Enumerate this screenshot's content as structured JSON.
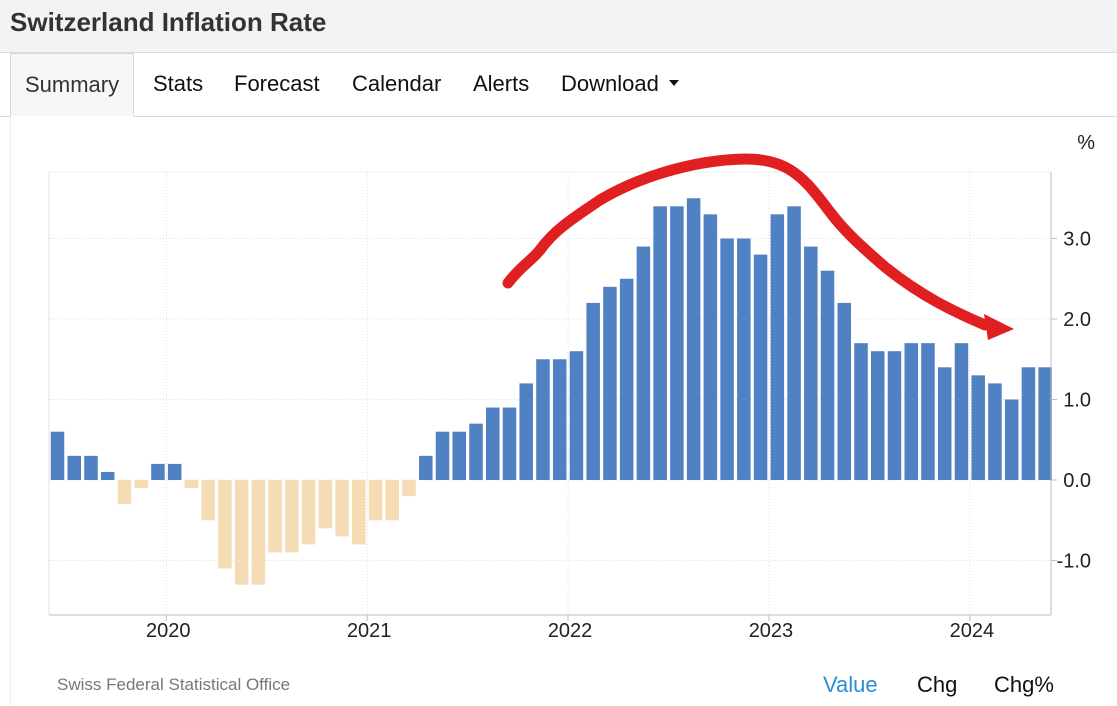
{
  "header": {
    "title": "Switzerland Inflation Rate"
  },
  "tabs": [
    {
      "label": "Summary",
      "active": true
    },
    {
      "label": "Stats"
    },
    {
      "label": "Forecast"
    },
    {
      "label": "Calendar"
    },
    {
      "label": "Alerts"
    },
    {
      "label": "Download"
    }
  ],
  "footer": {
    "source": "Swiss Federal Statistical Office",
    "view_buttons": [
      "Value",
      "Chg",
      "Chg%"
    ],
    "active_view": "Value"
  },
  "chart_data": {
    "type": "bar",
    "unit_label": "%",
    "x_start": "2019-06",
    "frequency": "monthly",
    "x_ticks": [
      "2020",
      "2021",
      "2022",
      "2023",
      "2024"
    ],
    "y_ticks": [
      "3.0",
      "2.0",
      "1.0",
      "0.0",
      "-1.0"
    ],
    "ylim": [
      -1.7,
      3.8
    ],
    "positive_color": "#5081c2",
    "negative_color": "#f5dcb4",
    "annotation": {
      "type": "hand-drawn arrow",
      "color": "#e02020"
    },
    "values": [
      0.6,
      0.3,
      0.3,
      0.1,
      -0.3,
      -0.1,
      0.2,
      0.2,
      -0.1,
      -0.5,
      -1.1,
      -1.3,
      -1.3,
      -0.9,
      -0.9,
      -0.8,
      -0.6,
      -0.7,
      -0.8,
      -0.5,
      -0.5,
      -0.2,
      0.3,
      0.6,
      0.6,
      0.7,
      0.9,
      0.9,
      1.2,
      1.5,
      1.5,
      1.6,
      2.2,
      2.4,
      2.5,
      2.9,
      3.4,
      3.4,
      3.5,
      3.3,
      3.0,
      3.0,
      2.8,
      3.3,
      3.4,
      2.9,
      2.6,
      2.2,
      1.7,
      1.6,
      1.6,
      1.7,
      1.7,
      1.4,
      1.7,
      1.3,
      1.2,
      1.0,
      1.4,
      1.4
    ]
  }
}
